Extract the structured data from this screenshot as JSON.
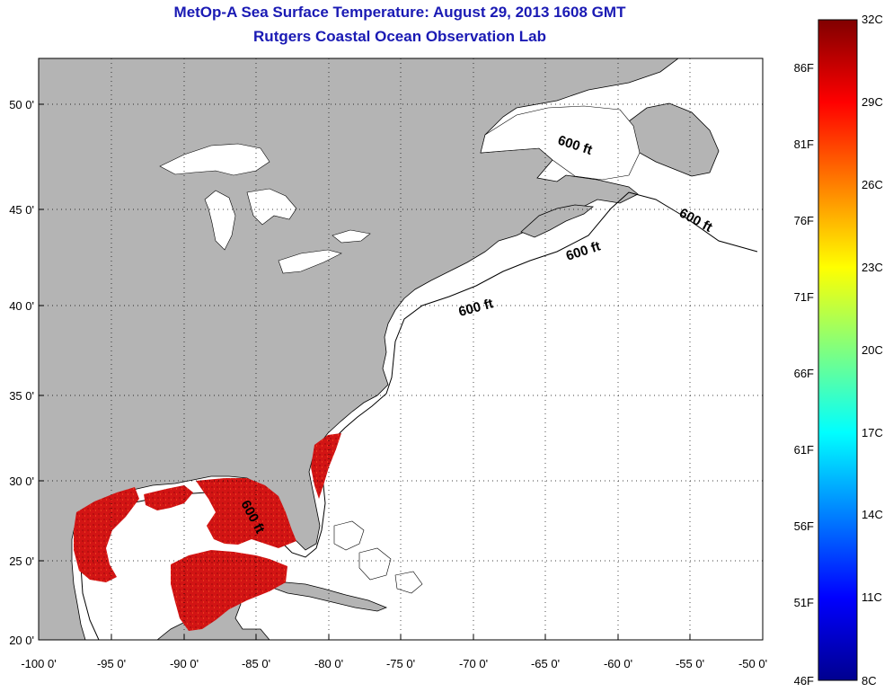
{
  "title": {
    "line1": "MetOp-A Sea Surface Temperature:  August 29, 2013 1608 GMT",
    "line2": "Rutgers Coastal Ocean Observation Lab"
  },
  "colors": {
    "title": "#1a1ab4",
    "land": "#b4b4b4",
    "ocean": "#ffffff",
    "sst_warm": "#d21414",
    "grid": "#000000"
  },
  "map": {
    "lon_range": [
      -100,
      -50
    ],
    "lat_range": [
      20,
      52.5
    ],
    "lon_ticks": [
      "-100 0'",
      "-95 0'",
      "-90 0'",
      "-85 0'",
      "-80 0'",
      "-75 0'",
      "-70 0'",
      "-65 0'",
      "-60 0'",
      "-55 0'",
      "-50 0'"
    ],
    "lat_ticks": [
      "20 0'",
      "25 0'",
      "30 0'",
      "35 0'",
      "40 0'",
      "45 0'",
      "50 0'"
    ],
    "grid": "dotted",
    "contour_labels": [
      "600 ft",
      "600 ft",
      "600 ft",
      "600 ft",
      "600 ft"
    ]
  },
  "colorbar": {
    "left_labels": [
      "86F",
      "81F",
      "76F",
      "71F",
      "66F",
      "61F",
      "56F",
      "51F",
      "46F"
    ],
    "right_labels": [
      "32C",
      "29C",
      "26C",
      "23C",
      "20C",
      "17C",
      "14C",
      "11C",
      "8C"
    ],
    "range_c": [
      8,
      32
    ],
    "colormap": "jet"
  }
}
